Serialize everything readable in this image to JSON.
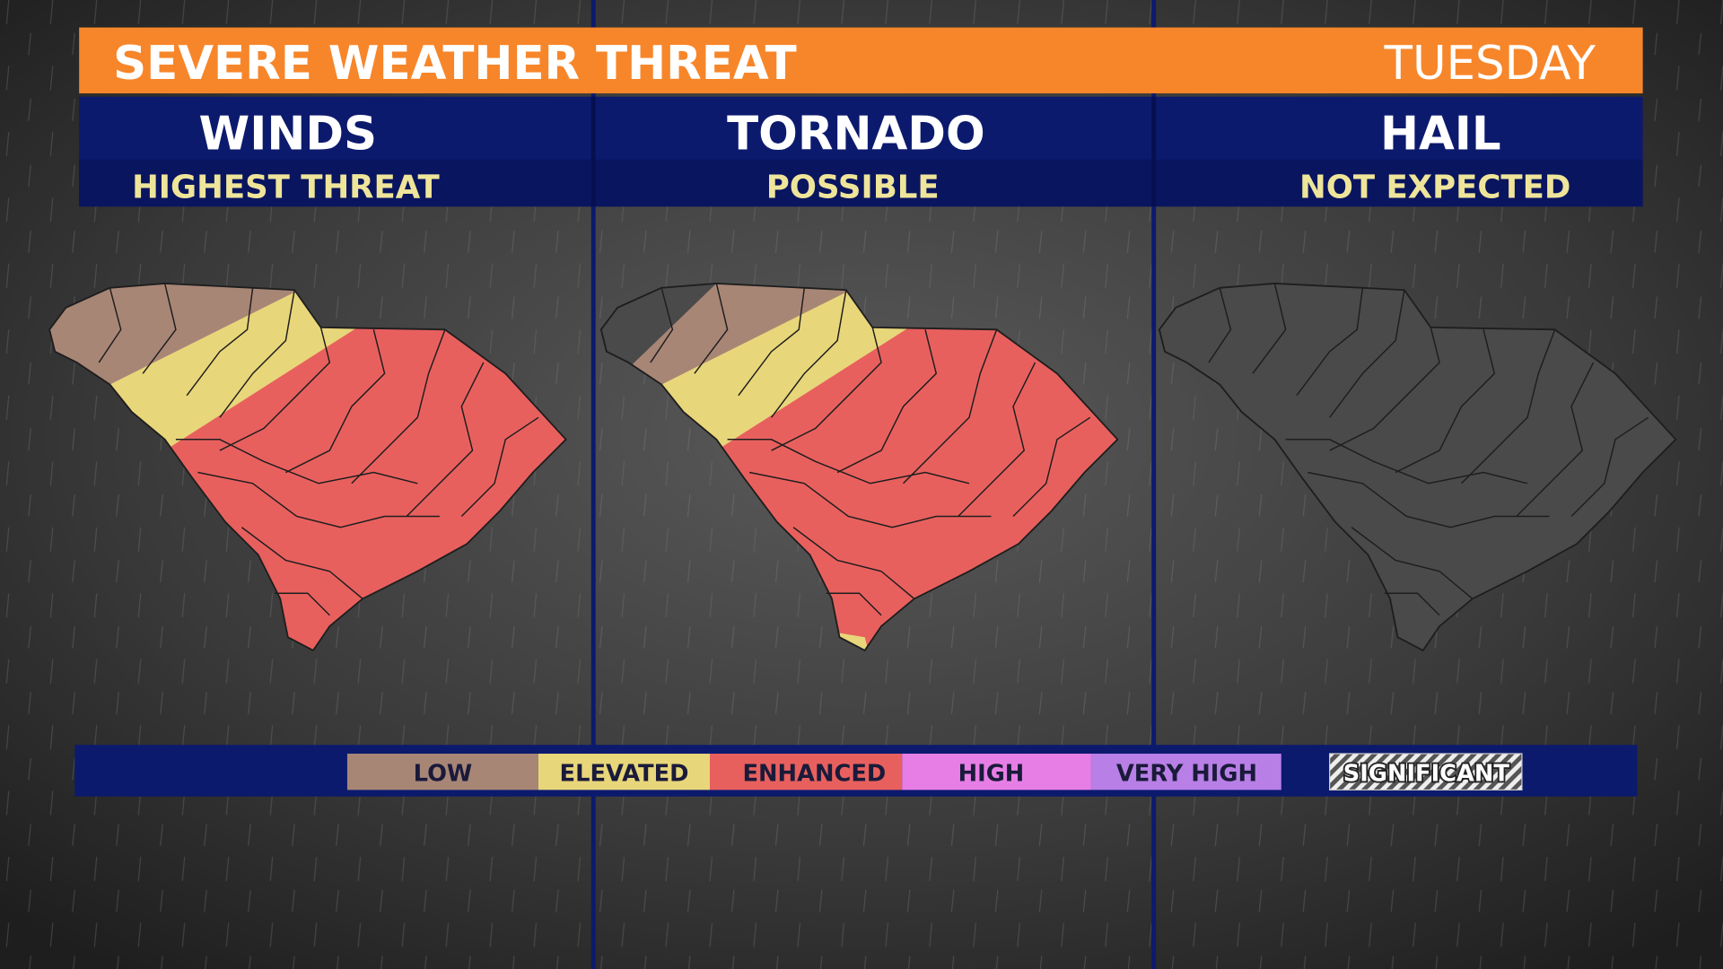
{
  "header": {
    "title": "SEVERE WEATHER THREAT",
    "day": "TUESDAY"
  },
  "panels": [
    {
      "title": "WINDS",
      "subtitle": "HIGHEST THREAT"
    },
    {
      "title": "TORNADO",
      "subtitle": "POSSIBLE"
    },
    {
      "title": "HAIL",
      "subtitle": "NOT EXPECTED"
    }
  ],
  "legend": {
    "items": [
      "LOW",
      "ELEVATED",
      "ENHANCED",
      "HIGH",
      "VERY HIGH"
    ],
    "significant": "SIGNIFICANT"
  }
}
